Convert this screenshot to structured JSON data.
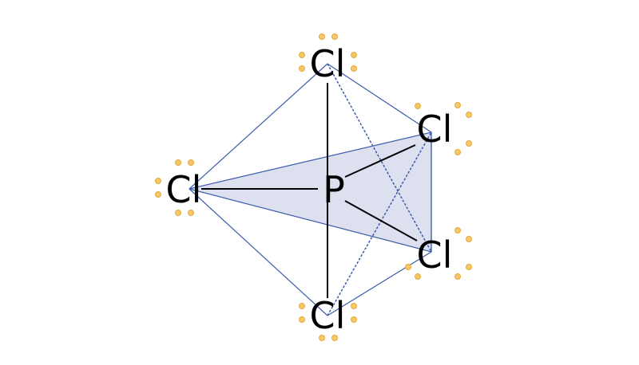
{
  "molecule": {
    "central_atom": "P",
    "ligand_symbol": "Cl",
    "colors": {
      "bond": "#000000",
      "edge": "#3b5bab",
      "shaded_plane": "#dde0ef",
      "lone_pair": "#f5c86a"
    },
    "atoms": [
      {
        "id": "cl-top",
        "label": "Cl"
      },
      {
        "id": "cl-left",
        "label": "Cl"
      },
      {
        "id": "cl-upper-right",
        "label": "Cl"
      },
      {
        "id": "cl-lower-right",
        "label": "Cl"
      },
      {
        "id": "cl-bottom",
        "label": "Cl"
      },
      {
        "id": "p-center",
        "label": "P"
      }
    ]
  }
}
